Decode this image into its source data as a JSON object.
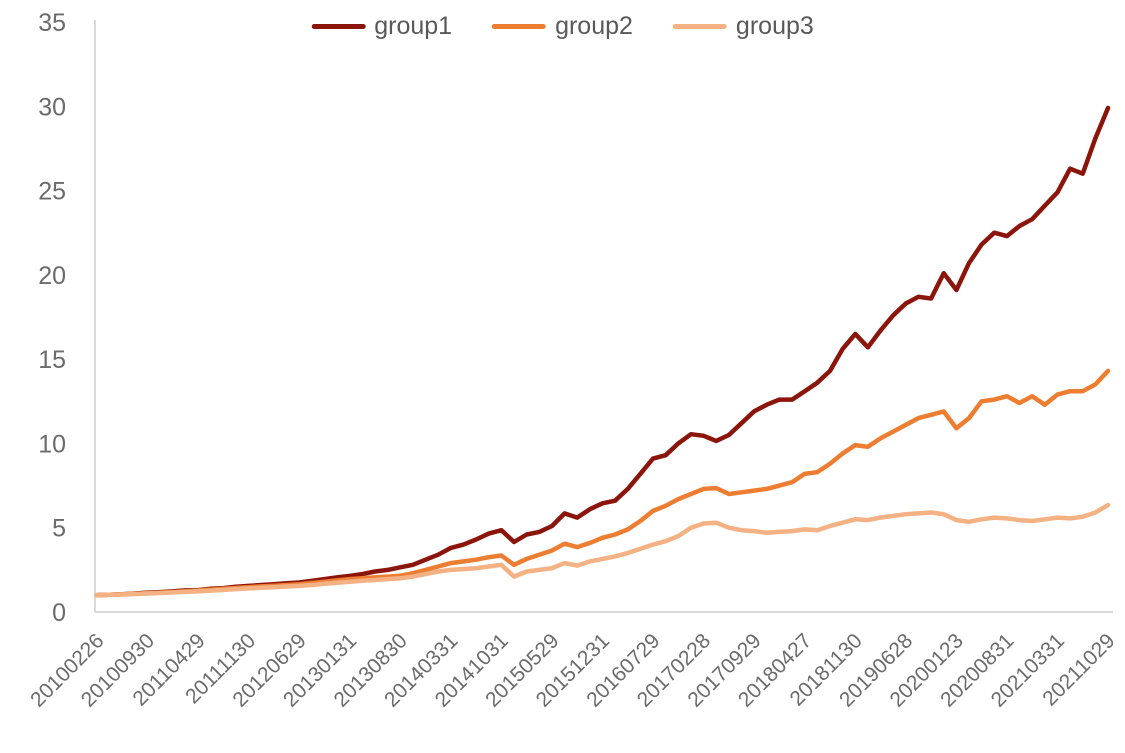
{
  "chart_data": {
    "type": "line",
    "title": "",
    "legend_position": "top-center",
    "grid": false,
    "ylim": [
      0,
      35
    ],
    "y_ticks": [
      0,
      5,
      10,
      15,
      20,
      25,
      30,
      35
    ],
    "x_tick_rotation": -45,
    "x_tick_labels": [
      "20100226",
      "20100930",
      "20110429",
      "20111130",
      "20120629",
      "20130131",
      "20130830",
      "20140331",
      "20141031",
      "20150529",
      "20151231",
      "20160729",
      "20170228",
      "20170929",
      "20180427",
      "20181130",
      "20190628",
      "20200123",
      "20200831",
      "20210331",
      "20211029"
    ],
    "points_per_tick_interval": 4,
    "axis_color": "#D9D9D9",
    "tick_label_color": "#6B6B6B",
    "legend_text_color": "#595959",
    "series": [
      {
        "name": "group1",
        "color": "#8B150B",
        "values": [
          1.0,
          1.02,
          1.05,
          1.1,
          1.15,
          1.18,
          1.22,
          1.28,
          1.3,
          1.38,
          1.42,
          1.5,
          1.55,
          1.6,
          1.65,
          1.7,
          1.75,
          1.85,
          1.95,
          2.05,
          2.15,
          2.25,
          2.4,
          2.5,
          2.65,
          2.8,
          3.1,
          3.4,
          3.8,
          4.0,
          4.3,
          4.65,
          4.85,
          4.15,
          4.6,
          4.75,
          5.1,
          5.85,
          5.6,
          6.1,
          6.45,
          6.6,
          7.3,
          8.2,
          9.1,
          9.3,
          10.0,
          10.55,
          10.45,
          10.15,
          10.5,
          11.2,
          11.9,
          12.3,
          12.6,
          12.6,
          13.1,
          13.6,
          14.3,
          15.6,
          16.5,
          15.7,
          16.7,
          17.6,
          18.3,
          18.7,
          18.6,
          20.1,
          19.1,
          20.7,
          21.8,
          22.5,
          22.3,
          22.9,
          23.3,
          24.1,
          24.9,
          26.3,
          26.0,
          28.1,
          29.9
        ]
      },
      {
        "name": "group2",
        "color": "#ED7D31",
        "values": [
          1.0,
          1.02,
          1.05,
          1.08,
          1.12,
          1.15,
          1.18,
          1.23,
          1.28,
          1.33,
          1.38,
          1.43,
          1.48,
          1.52,
          1.56,
          1.6,
          1.65,
          1.72,
          1.8,
          1.88,
          1.95,
          2.0,
          2.05,
          2.1,
          2.15,
          2.3,
          2.5,
          2.7,
          2.9,
          3.0,
          3.1,
          3.25,
          3.35,
          2.8,
          3.15,
          3.4,
          3.65,
          4.05,
          3.85,
          4.1,
          4.4,
          4.6,
          4.9,
          5.4,
          6.0,
          6.3,
          6.7,
          7.0,
          7.3,
          7.35,
          7.0,
          7.1,
          7.2,
          7.3,
          7.5,
          7.7,
          8.2,
          8.3,
          8.8,
          9.4,
          9.9,
          9.8,
          10.3,
          10.7,
          11.1,
          11.5,
          11.7,
          11.9,
          10.9,
          11.5,
          12.5,
          12.6,
          12.8,
          12.4,
          12.8,
          12.3,
          12.9,
          13.1,
          13.1,
          13.5,
          14.3
        ]
      },
      {
        "name": "group3",
        "color": "#F4B183",
        "values": [
          1.0,
          1.02,
          1.04,
          1.07,
          1.1,
          1.13,
          1.16,
          1.19,
          1.22,
          1.27,
          1.31,
          1.36,
          1.4,
          1.44,
          1.47,
          1.51,
          1.55,
          1.6,
          1.67,
          1.73,
          1.8,
          1.85,
          1.9,
          1.95,
          2.0,
          2.1,
          2.25,
          2.4,
          2.5,
          2.55,
          2.6,
          2.7,
          2.8,
          2.1,
          2.4,
          2.5,
          2.6,
          2.9,
          2.75,
          3.0,
          3.15,
          3.3,
          3.5,
          3.75,
          4.0,
          4.2,
          4.5,
          5.0,
          5.25,
          5.3,
          5.0,
          4.85,
          4.8,
          4.7,
          4.75,
          4.8,
          4.9,
          4.85,
          5.1,
          5.3,
          5.5,
          5.45,
          5.6,
          5.7,
          5.8,
          5.85,
          5.9,
          5.8,
          5.45,
          5.35,
          5.5,
          5.6,
          5.55,
          5.45,
          5.4,
          5.5,
          5.6,
          5.55,
          5.65,
          5.9,
          6.35
        ]
      }
    ]
  }
}
